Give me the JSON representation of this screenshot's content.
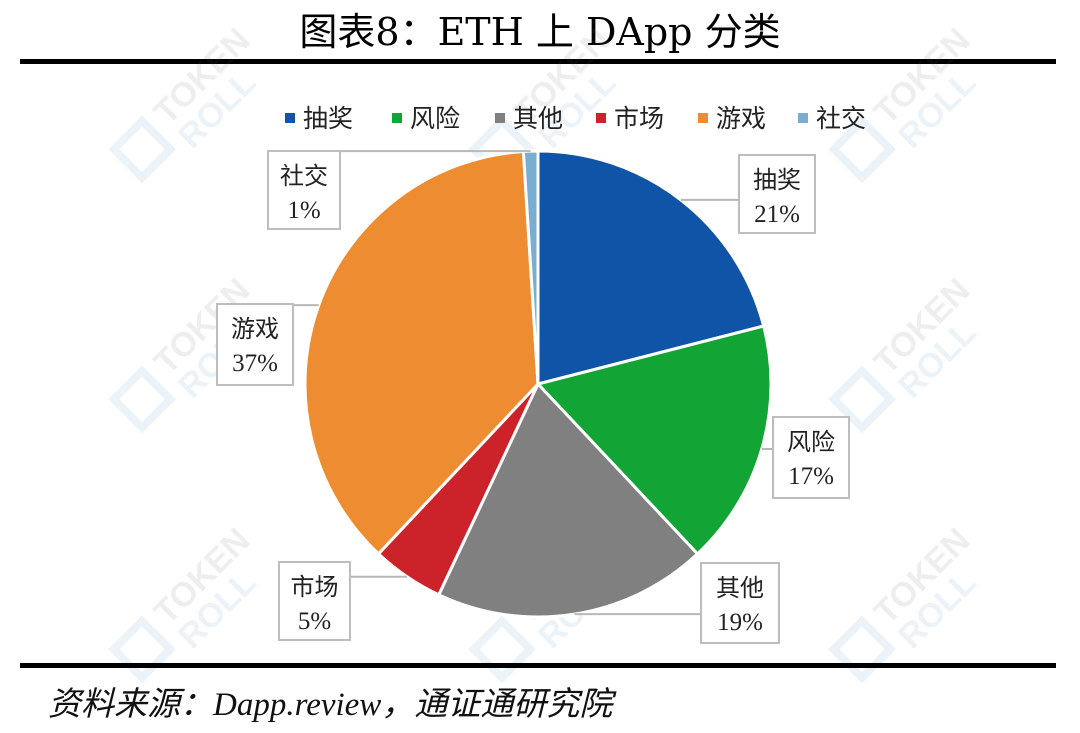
{
  "figure_title": "图表8：ETH 上 DApp 分类",
  "source_note": "资料来源：Dapp.review，通证通研究院",
  "watermark": "TOKEN ROLL",
  "chart_data": {
    "type": "pie",
    "legend_position": "top",
    "categories": [
      "抽奖",
      "风险",
      "其他",
      "市场",
      "游戏",
      "社交"
    ],
    "values": [
      21,
      17,
      19,
      5,
      37,
      1
    ],
    "labels": [
      "21%",
      "17%",
      "19%",
      "5%",
      "37%",
      "1%"
    ],
    "colors": [
      "#1054a8",
      "#12a535",
      "#808080",
      "#cc2229",
      "#ee8c32",
      "#7aaed0"
    ]
  }
}
